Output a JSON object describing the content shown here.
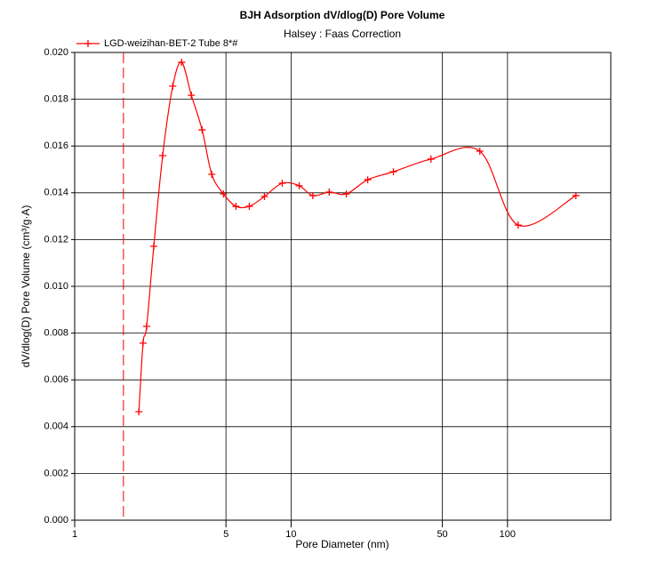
{
  "chart_data": {
    "type": "line",
    "title": "BJH Adsorption dV/dlog(D) Pore Volume",
    "subtitle": "Halsey : Faas Correction",
    "x_label": "Pore Diameter (nm)",
    "y_label": "dV/dlog(D) Pore Volume (cm³/g·A)",
    "x_scale": "log",
    "xlim": [
      1,
      300
    ],
    "xticks": [
      1,
      5,
      10,
      50,
      100
    ],
    "ylim": [
      0,
      0.02
    ],
    "yticks": [
      {
        "value": 0,
        "label": "0.000"
      },
      {
        "value": 0.002,
        "label": "0.002"
      },
      {
        "value": 0.004,
        "label": "0.004"
      },
      {
        "value": 0.006,
        "label": "0.006"
      },
      {
        "value": 0.008,
        "label": "0.008"
      },
      {
        "value": 0.01,
        "label": "0.010"
      },
      {
        "value": 0.012,
        "label": "0.012"
      },
      {
        "value": 0.014,
        "label": "0.014"
      },
      {
        "value": 0.016,
        "label": "0.016"
      },
      {
        "value": 0.018,
        "label": "0.018"
      },
      {
        "value": 0.02,
        "label": "0.020"
      }
    ],
    "grid": true,
    "legend": "top-left",
    "vline_x": 1.68,
    "series": [
      {
        "name": "LGD-weizihan-BET-2  Tube 8*#",
        "color": "#ff0000",
        "x": [
          1.98,
          2.07,
          2.15,
          2.32,
          2.55,
          2.84,
          3.12,
          3.46,
          3.88,
          4.3,
          4.87,
          5.56,
          6.41,
          7.53,
          9.1,
          10.9,
          12.6,
          15.0,
          18.0,
          22.6,
          29.7,
          44.3,
          74.5,
          112,
          207
        ],
        "values": [
          0.00464,
          0.00757,
          0.00829,
          0.01171,
          0.01559,
          0.01856,
          0.01958,
          0.01817,
          0.01669,
          0.01479,
          0.01395,
          0.01342,
          0.01342,
          0.01384,
          0.01441,
          0.0143,
          0.01388,
          0.01403,
          0.01395,
          0.01456,
          0.0149,
          0.01544,
          0.01578,
          0.01262,
          0.01388
        ]
      }
    ]
  }
}
